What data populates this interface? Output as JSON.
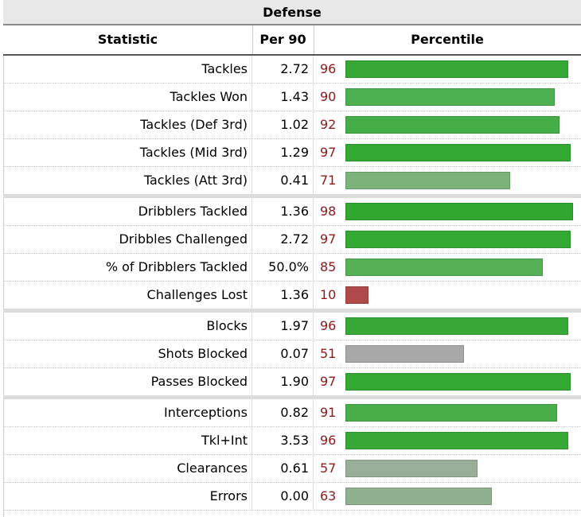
{
  "table": {
    "title": "Defense",
    "headers": {
      "statistic": "Statistic",
      "per90": "Per 90",
      "percentile": "Percentile"
    },
    "rows": [
      {
        "stat": "Tackles",
        "per90": "2.72",
        "pct": 96,
        "color": "#35a835",
        "group_end": false
      },
      {
        "stat": "Tackles Won",
        "per90": "1.43",
        "pct": 90,
        "color": "#4caf50",
        "group_end": false
      },
      {
        "stat": "Tackles (Def 3rd)",
        "per90": "1.02",
        "pct": 92,
        "color": "#45ad45",
        "group_end": false
      },
      {
        "stat": "Tackles (Mid 3rd)",
        "per90": "1.29",
        "pct": 97,
        "color": "#33a833",
        "group_end": false
      },
      {
        "stat": "Tackles (Att 3rd)",
        "per90": "0.41",
        "pct": 71,
        "color": "#7bb37b",
        "group_end": true
      },
      {
        "stat": "Dribblers Tackled",
        "per90": "1.36",
        "pct": 98,
        "color": "#30a830",
        "group_end": false
      },
      {
        "stat": "Dribbles Challenged",
        "per90": "2.72",
        "pct": 97,
        "color": "#33a833",
        "group_end": false
      },
      {
        "stat": "% of Dribblers Tackled",
        "per90": "50.0%",
        "pct": 85,
        "color": "#56b056",
        "group_end": false
      },
      {
        "stat": "Challenges Lost",
        "per90": "1.36",
        "pct": 10,
        "color": "#b04a4a",
        "group_end": true
      },
      {
        "stat": "Blocks",
        "per90": "1.97",
        "pct": 96,
        "color": "#35a835",
        "group_end": false
      },
      {
        "stat": "Shots Blocked",
        "per90": "0.07",
        "pct": 51,
        "color": "#a8a8a8",
        "group_end": false
      },
      {
        "stat": "Passes Blocked",
        "per90": "1.90",
        "pct": 97,
        "color": "#33a833",
        "group_end": true
      },
      {
        "stat": "Interceptions",
        "per90": "0.82",
        "pct": 91,
        "color": "#48ae48",
        "group_end": false
      },
      {
        "stat": "Tkl+Int",
        "per90": "3.53",
        "pct": 96,
        "color": "#35a835",
        "group_end": false
      },
      {
        "stat": "Clearances",
        "per90": "0.61",
        "pct": 57,
        "color": "#98ae98",
        "group_end": false
      },
      {
        "stat": "Errors",
        "per90": "0.00",
        "pct": 63,
        "color": "#8fb18f",
        "group_end": false
      }
    ]
  }
}
